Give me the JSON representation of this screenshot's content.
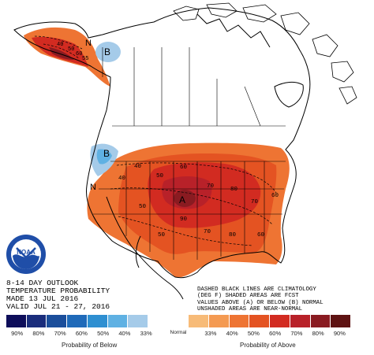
{
  "title_block": {
    "line1": "8-14 DAY OUTLOOK",
    "line2": "TEMPERATURE PROBABILITY",
    "line3": "MADE  13 JUL 2016",
    "line4": "VALID  JUL 21 - 27, 2016"
  },
  "notes": [
    "DASHED BLACK LINES ARE CLIMATOLOGY",
    "(DEG F) SHADED AREAS ARE FCST",
    "VALUES ABOVE (A) OR BELOW (B) NORMAL",
    "UNSHADED AREAS ARE NEAR-NORMAL"
  ],
  "logo": {
    "text": "NOAA"
  },
  "map_labels": {
    "A": "A",
    "B_alaska": "B",
    "B_pacific": "B",
    "N_alaska": "N",
    "N_pacific": "N",
    "alaska_values": [
      "40",
      "50",
      "60",
      "55"
    ],
    "contours": [
      "40",
      "50",
      "60",
      "70",
      "80",
      "90",
      "70",
      "80",
      "60",
      "50",
      "50",
      "40",
      "70",
      "60"
    ]
  },
  "legend": {
    "colors": [
      "#0e0e5a",
      "#1a2d7c",
      "#1b4e9b",
      "#1f6ab9",
      "#2e8fd1",
      "#5fb1e3",
      "#a5cbe9",
      "#ffffff",
      "#ffffff",
      "#f7bb78",
      "#f49a52",
      "#ee7433",
      "#e45322",
      "#d22b21",
      "#b82129",
      "#8a1b21",
      "#5e1313"
    ],
    "labels": [
      "90%",
      "80%",
      "70%",
      "60%",
      "50%",
      "40%",
      "33%",
      "Normal",
      "33%",
      "40%",
      "50%",
      "60%",
      "70%",
      "80%",
      "90%"
    ],
    "below_label": "Probability of Below",
    "above_label": "Probability of Above"
  }
}
